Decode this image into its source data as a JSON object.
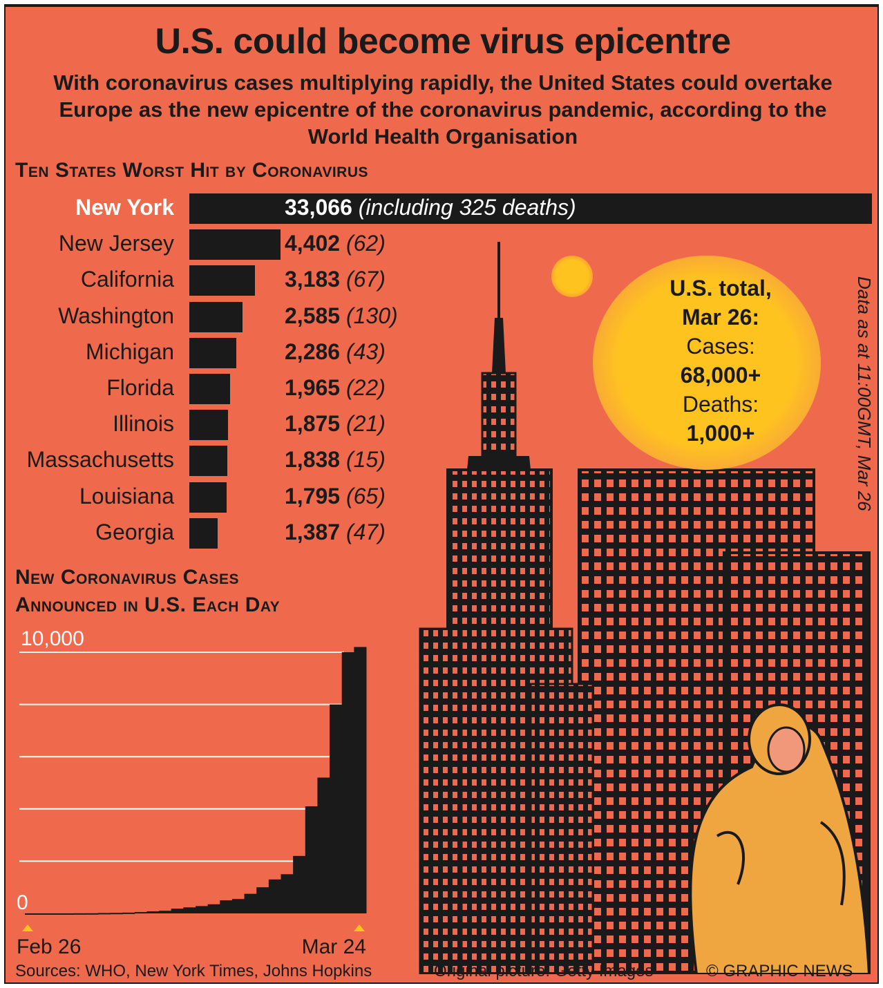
{
  "title": "U.S. could become virus epicentre",
  "subtitle": "With coronavirus cases multiplying rapidly, the United States could overtake Europe as the new epicentre of the coronavirus pandemic, according to the World Health Organisation",
  "states_heading": "Ten States Worst Hit by Coronavirus",
  "daily_heading_line1": "New Coronavirus Cases",
  "daily_heading_line2": "Announced in U.S. Each Day",
  "us_total": {
    "line1": "U.S. total,",
    "line2": "Mar 26:",
    "cases_label": "Cases:",
    "cases_value": "68,000+",
    "deaths_label": "Deaths:",
    "deaths_value": "1,000+"
  },
  "data_as_of": "Data as at 11:00GMT, Mar 26",
  "footer": {
    "sources": "Sources: WHO, New York Times, Johns Hopkins",
    "picture": "Original picture: Getty Images",
    "credit": "© GRAPHIC NEWS"
  },
  "colors": {
    "background": "#ef6a4c",
    "bars": "#1a1a1a",
    "highlight": "#ffc320",
    "text": "#1a1a1a"
  },
  "chart_data": [
    {
      "type": "bar",
      "orientation": "horizontal",
      "title": "Ten States Worst Hit by Coronavirus",
      "categories": [
        "New York",
        "New Jersey",
        "California",
        "Washington",
        "Michigan",
        "Florida",
        "Illinois",
        "Massachusetts",
        "Louisiana",
        "Georgia"
      ],
      "values": [
        33066,
        4402,
        3183,
        2585,
        2286,
        1965,
        1875,
        1838,
        1795,
        1387
      ],
      "value_labels": [
        "33,066",
        "4,402",
        "3,183",
        "2,585",
        "2,286",
        "1,965",
        "1,875",
        "1,838",
        "1,795",
        "1,387"
      ],
      "deaths": [
        325,
        62,
        67,
        130,
        43,
        22,
        21,
        15,
        65,
        47
      ],
      "deaths_labels": [
        "(including 325 deaths)",
        "(62)",
        "(67)",
        "(130)",
        "(43)",
        "(22)",
        "(21)",
        "(15)",
        "(65)",
        "(47)"
      ],
      "xlim": [
        0,
        33066
      ]
    },
    {
      "type": "bar",
      "title": "New Coronavirus Cases Announced in U.S. Each Day",
      "x_start": "Feb 26",
      "x_end": "Mar 24",
      "ylim": [
        0,
        10000
      ],
      "yticks": [
        0,
        2000,
        4000,
        6000,
        8000,
        10000
      ],
      "ytick_labels": [
        "0",
        "10,000"
      ],
      "grid": true,
      "values": [
        1,
        1,
        1,
        1,
        4,
        5,
        15,
        20,
        30,
        50,
        80,
        100,
        180,
        230,
        280,
        350,
        500,
        550,
        750,
        1000,
        1300,
        1500,
        2200,
        4100,
        5200,
        8000,
        10000,
        10200
      ]
    }
  ]
}
